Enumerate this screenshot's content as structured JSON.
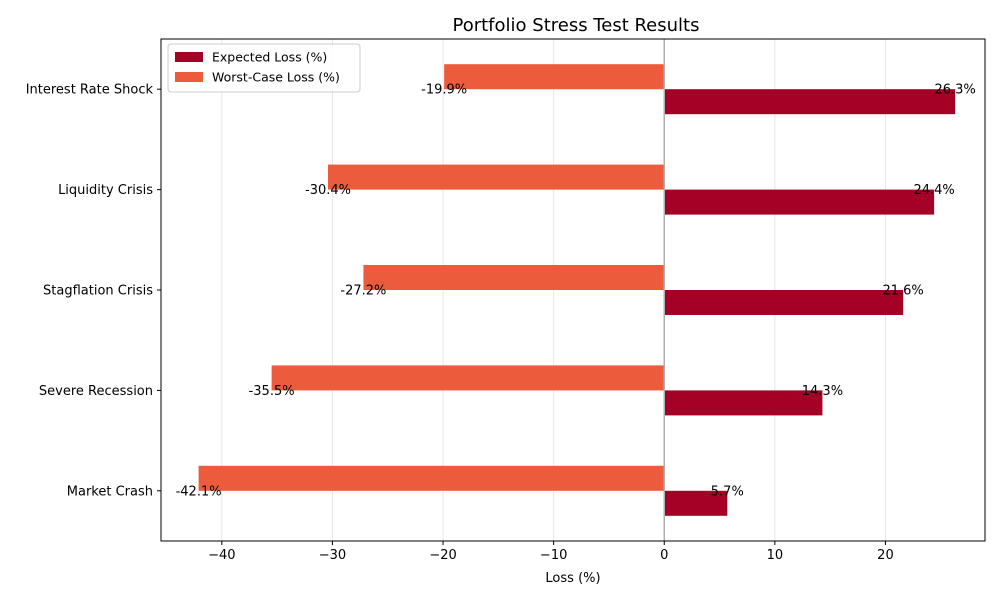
{
  "chart_data": {
    "type": "bar",
    "orientation": "horizontal",
    "title": "Portfolio Stress Test Results",
    "xlabel": "Loss (%)",
    "ylabel": "",
    "xlim": [
      -45.5,
      29.0
    ],
    "xticks": [
      -40,
      -30,
      -20,
      -10,
      0,
      10,
      20
    ],
    "xtick_labels": [
      "−40",
      "−30",
      "−20",
      "−10",
      "0",
      "10",
      "20"
    ],
    "grid": "vertical",
    "legend_position": "top-left",
    "categories": [
      "Market Crash",
      "Severe Recession",
      "Stagflation Crisis",
      "Liquidity Crisis",
      "Interest Rate Shock"
    ],
    "series": [
      {
        "name": "Expected Loss (%)",
        "color": "#a50026",
        "values": [
          5.7,
          14.3,
          21.6,
          24.4,
          26.3
        ],
        "labels": [
          "5.7%",
          "14.3%",
          "21.6%",
          "24.4%",
          "26.3%"
        ]
      },
      {
        "name": "Worst-Case Loss (%)",
        "color": "#eb5b3c",
        "values": [
          -42.1,
          -35.5,
          -27.2,
          -30.4,
          -19.9
        ],
        "labels": [
          "-42.1%",
          "-35.5%",
          "-27.2%",
          "-30.4%",
          "-19.9%"
        ]
      }
    ]
  }
}
